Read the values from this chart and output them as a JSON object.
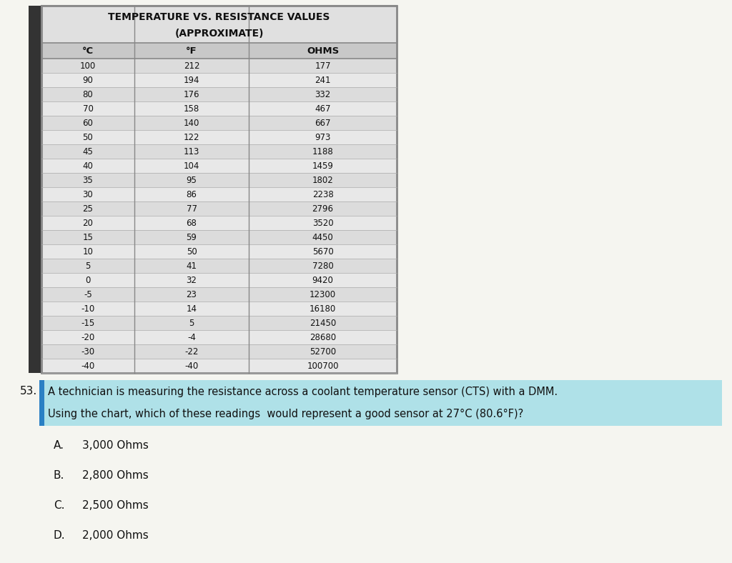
{
  "title_line1": "TEMPERATURE VS. RESISTANCE VALUES",
  "title_line2": "(APPROXIMATE)",
  "headers": [
    "°C",
    "°F",
    "OHMS"
  ],
  "rows": [
    [
      "100",
      "212",
      "177"
    ],
    [
      "90",
      "194",
      "241"
    ],
    [
      "80",
      "176",
      "332"
    ],
    [
      "70",
      "158",
      "467"
    ],
    [
      "60",
      "140",
      "667"
    ],
    [
      "50",
      "122",
      "973"
    ],
    [
      "45",
      "113",
      "1188"
    ],
    [
      "40",
      "104",
      "1459"
    ],
    [
      "35",
      "95",
      "1802"
    ],
    [
      "30",
      "86",
      "2238"
    ],
    [
      "25",
      "77",
      "2796"
    ],
    [
      "20",
      "68",
      "3520"
    ],
    [
      "15",
      "59",
      "4450"
    ],
    [
      "10",
      "50",
      "5670"
    ],
    [
      "5",
      "41",
      "7280"
    ],
    [
      "0",
      "32",
      "9420"
    ],
    [
      "-5",
      "23",
      "12300"
    ],
    [
      "-10",
      "14",
      "16180"
    ],
    [
      "-15",
      "5",
      "21450"
    ],
    [
      "-20",
      "-4",
      "28680"
    ],
    [
      "-30",
      "-22",
      "52700"
    ],
    [
      "-40",
      "-40",
      "100700"
    ]
  ],
  "question_number": "53.",
  "question_text_line1": "A technician is measuring the resistance across a coolant temperature sensor (CTS) with a DMM.",
  "question_text_line2": "Using the chart, which of these readings  would represent a good sensor at 27°C (80.6°F)?",
  "choices": [
    [
      "A.",
      "3,000 Ohms"
    ],
    [
      "B.",
      "2,800 Ohms"
    ],
    [
      "C.",
      "2,500 Ohms"
    ],
    [
      "D.",
      "2,000 Ohms"
    ]
  ],
  "highlight_color": "#a8dfe8",
  "page_bg": "#f5f5f0",
  "table_bg_even": "#dcdcdc",
  "table_bg_odd": "#e8e8e8",
  "title_bg": "#e0e0e0",
  "header_bg": "#c8c8c8",
  "border_color": "#888888",
  "dark_strip_color": "#333333",
  "text_color": "#111111"
}
